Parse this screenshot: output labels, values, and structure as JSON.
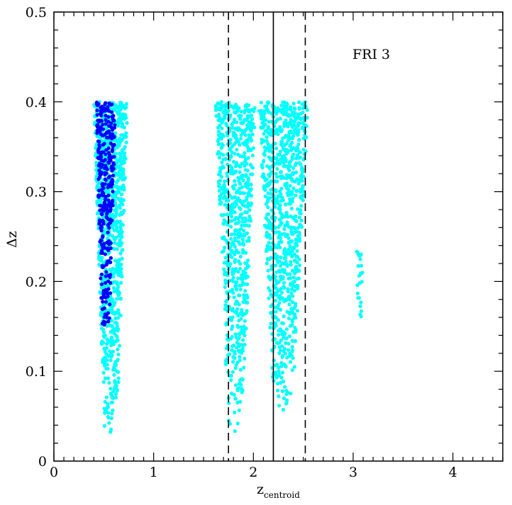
{
  "chart_data": {
    "type": "scatter",
    "title": "",
    "annotation": "FRI 3",
    "xlabel": "z",
    "xlabel_subscript": "centroid",
    "ylabel": "Δz",
    "xlim": [
      0,
      4.5
    ],
    "ylim": [
      0,
      0.5
    ],
    "x_ticks": [
      "0",
      "1",
      "2",
      "3",
      "4"
    ],
    "y_ticks": [
      "0",
      "0.1",
      "0.2",
      "0.3",
      "0.4",
      "0.5"
    ],
    "grid": false,
    "reference_lines": [
      {
        "x": 1.75,
        "style": "dashed"
      },
      {
        "x": 2.2,
        "style": "solid"
      },
      {
        "x": 2.52,
        "style": "dashed"
      }
    ],
    "series": [
      {
        "color": "#00ffff",
        "clusters": [
          {
            "x_range": [
              0.4,
              0.74
            ],
            "y_range": [
              0.02,
              0.4
            ],
            "n": 900
          },
          {
            "x_range": [
              1.62,
              2.02
            ],
            "y_range": [
              0.03,
              0.4
            ],
            "n": 700
          },
          {
            "x_range": [
              2.05,
              2.55
            ],
            "y_range": [
              0.05,
              0.4
            ],
            "n": 900
          },
          {
            "x_range": [
              3.03,
              3.1
            ],
            "y_range": [
              0.15,
              0.235
            ],
            "n": 25
          }
        ]
      },
      {
        "color": "#0000ff",
        "clusters": [
          {
            "x_range": [
              0.42,
              0.62
            ],
            "y_range": [
              0.14,
              0.4
            ],
            "n": 320
          }
        ]
      }
    ]
  }
}
